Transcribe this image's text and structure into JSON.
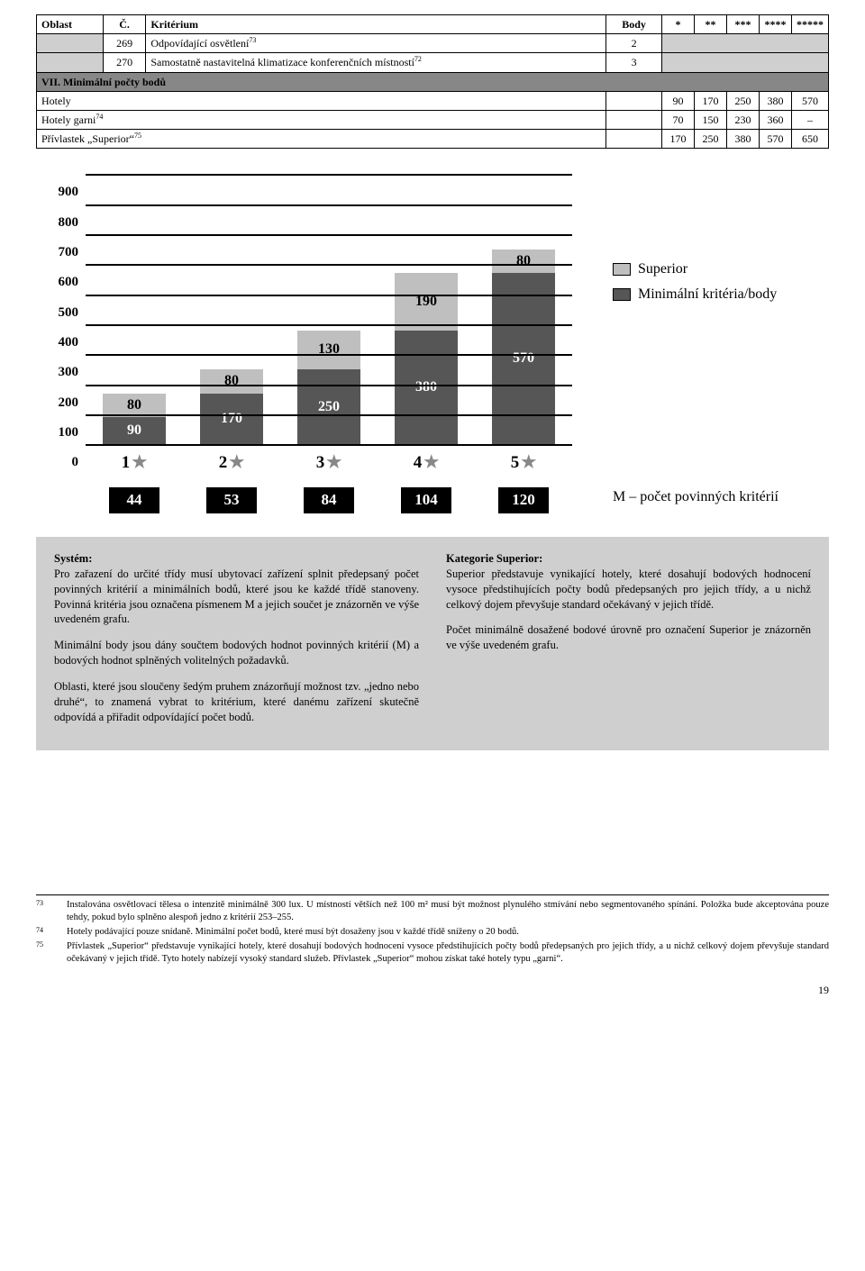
{
  "table": {
    "headers": {
      "oblast": "Oblast",
      "c": "Č.",
      "kriterium": "Kritérium",
      "body": "Body",
      "s1": "*",
      "s2": "**",
      "s3": "***",
      "s4": "****",
      "s5": "*****"
    },
    "rows": [
      {
        "c": "269",
        "k": "Odpovídající osvětlení",
        "sup": "73",
        "b": "2"
      },
      {
        "c": "270",
        "k": "Samostatně nastavitelná klimatizace konferenčních místností",
        "sup": "72",
        "b": "3"
      }
    ],
    "section": "VII. Minimální počty bodů",
    "minrows": [
      {
        "label": "Hotely",
        "v": [
          "90",
          "170",
          "250",
          "380",
          "570"
        ]
      },
      {
        "label": "Hotely garni",
        "sup": "74",
        "v": [
          "70",
          "150",
          "230",
          "360",
          "–"
        ]
      },
      {
        "label": "Přívlastek „Superior“",
        "sup": "75",
        "v": [
          "170",
          "250",
          "380",
          "570",
          "650"
        ]
      }
    ]
  },
  "chart": {
    "ylabels": [
      "0",
      "100",
      "200",
      "300",
      "400",
      "500",
      "600",
      "700",
      "800",
      "900"
    ],
    "ymax": 900,
    "bars": [
      {
        "min": 90,
        "sup": 80,
        "min_label": "90",
        "sup_label": "80"
      },
      {
        "min": 170,
        "sup": 80,
        "min_label": "170",
        "sup_label": "80"
      },
      {
        "min": 250,
        "sup": 130,
        "min_label": "250",
        "sup_label": "130"
      },
      {
        "min": 380,
        "sup": 190,
        "min_label": "380",
        "sup_label": "190"
      },
      {
        "min": 570,
        "sup": 80,
        "min_label": "570",
        "sup_label": "80"
      }
    ],
    "xlabels": [
      "1",
      "2",
      "3",
      "4",
      "5"
    ],
    "legend": {
      "sup": "Superior",
      "min": "Minimální kritéria/body"
    },
    "m_values": [
      "44",
      "53",
      "84",
      "104",
      "120"
    ],
    "m_label": "M – počet povinných kritérií",
    "colors": {
      "min": "#575656",
      "sup": "#bfbfbf",
      "grid": "#000000",
      "mbox": "#000000"
    }
  },
  "textblock": {
    "left": {
      "h1": "Systém:",
      "p1": "Pro zařazení do určité třídy musí ubytovací zařízení splnit předepsaný počet povinných kritérií a minimálních bodů, které jsou ke každé třídě stanoveny. Povinná kritéria jsou označena písmenem M a jejich součet je znázorněn ve výše uvedeném grafu.",
      "p2": "Minimální body jsou dány součtem bodových hodnot povinných kritérií (M) a bodových hodnot splněných volitelných požadavků.",
      "p3": "Oblasti, které jsou sloučeny šedým pruhem znázorňují možnost tzv. „jedno nebo druhé“, to znamená vybrat to kritérium, které danému zařízení skutečně odpovídá a přiřadit odpovídající počet bodů."
    },
    "right": {
      "h1": "Kategorie Superior:",
      "p1": "Superior představuje vynikající hotely, které dosahují bodových hodnocení vysoce předstihujících počty bodů předepsaných pro jejich třídy, a u nichž celkový dojem převyšuje standard očekávaný v jejich třídě.",
      "p2": "Počet minimálně dosažené bodové úrovně pro označení Superior je znázorněn ve výše uvedeném grafu."
    }
  },
  "footnotes": [
    {
      "n": "73",
      "t": "Instalována osvětlovací tělesa o intenzitě minimálně 300 lux. U místností větších než 100 m² musí být možnost plynulého stmívání nebo segmentovaného spínání. Položka bude akceptována pouze tehdy, pokud bylo splněno alespoň jedno z kritérií 253–255."
    },
    {
      "n": "74",
      "t": "Hotely podávající pouze snídaně. Minimální počet bodů, které musí být dosaženy jsou v každé třídě sníženy o 20 bodů."
    },
    {
      "n": "75",
      "t": "Přívlastek „Superior“ představuje vynikající hotely, které dosahují bodových hodnocení vysoce předstihujících počty bodů předepsaných pro jejich třídy, a u nichž celkový dojem převyšuje standard očekávaný v jejich třídě. Tyto hotely nabízejí vysoký standard služeb. Přívlastek „Superior“ mohou získat také hotely typu „garni“."
    }
  ],
  "page": "19"
}
